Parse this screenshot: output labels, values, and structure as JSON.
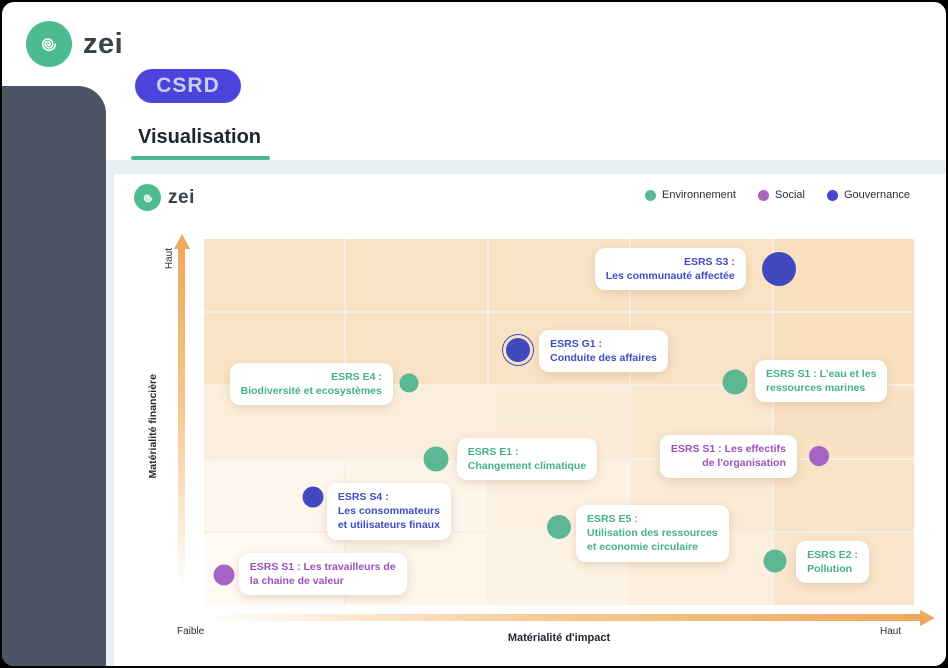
{
  "header": {
    "logo_text": "zei",
    "csrd_badge": "CSRD",
    "page_title": "Visualisation"
  },
  "panel": {
    "logo_text": "zei",
    "legend": [
      {
        "label": "Environnement",
        "color": "#5CB894"
      },
      {
        "label": "Social",
        "color": "#A763C4"
      },
      {
        "label": "Gouvernance",
        "color": "#4A43D0"
      }
    ]
  },
  "chart_data": {
    "type": "scatter",
    "title": "",
    "x_axis": {
      "label": "Matérialité d'impact",
      "low": "Faible",
      "high": "Haut"
    },
    "y_axis": {
      "label": "Matérialité financière",
      "high": "Haut"
    },
    "legend_position": "top-right",
    "grid": "5x5 shaded materiality zones, darker = higher materiality (top / right)",
    "colors": {
      "environnement": {
        "dot": "#5CB894",
        "text": "#47AE8E"
      },
      "social": {
        "dot": "#A763C4",
        "text": "#9C51BA"
      },
      "gouvernance": {
        "dot": "#4149C0",
        "text": "#3D4DC2"
      }
    },
    "grid_cells": [
      [
        "#FAE3C5",
        "#FAE3C5",
        "#FAE3C5",
        "#FAE3C5",
        "#F9E0C0"
      ],
      [
        "#FAE3C5",
        "#FAE3C5",
        "#FAE3C5",
        "#FAE3C5",
        "#F9E0C0"
      ],
      [
        "#FCEEDC",
        "#FCEEDC",
        "#FCEDDA",
        "#FBE8D0",
        "#F9E2C4"
      ],
      [
        "#FEF6EC",
        "#FEF5EA",
        "#FDF1E2",
        "#FBEAD5",
        "#F9E3C6"
      ],
      [
        "#FFFAF3",
        "#FEF6EB",
        "#FDF3E5",
        "#FCEEDC",
        "#FAE6CC"
      ]
    ],
    "points": [
      {
        "id": "esrs-s3",
        "label": "ESRS S3 :\nLes communauté affectée",
        "category": "gouvernance",
        "x_pct": 81.0,
        "y_pct": 8.2,
        "size": 34,
        "ring": false,
        "card": {
          "align": "right",
          "right_pct": 23.7,
          "top_pct": 2.5
        }
      },
      {
        "id": "esrs-g1",
        "label": "ESRS G1 :\nConduite des affaires",
        "category": "gouvernance",
        "x_pct": 44.2,
        "y_pct": 30.3,
        "size": 24,
        "ring": true,
        "card": {
          "align": "left",
          "left_pct": 47.2,
          "top_pct": 24.8
        }
      },
      {
        "id": "esrs-e4",
        "label": "ESRS E4 :\nBiodiversité et ecosystèmes",
        "category": "environnement",
        "x_pct": 28.9,
        "y_pct": 39.3,
        "size": 19,
        "ring": false,
        "card": {
          "align": "right",
          "right_pct": 73.4,
          "top_pct": 33.9
        }
      },
      {
        "id": "esrs-s1-eau",
        "label": "ESRS S1 : L'eau et les\nressources marines",
        "category": "environnement",
        "x_pct": 74.8,
        "y_pct": 39.1,
        "size": 25,
        "ring": false,
        "card": {
          "align": "left",
          "left_pct": 77.6,
          "top_pct": 33.1
        }
      },
      {
        "id": "esrs-e1",
        "label": "ESRS E1 :\nChangement climatique",
        "category": "environnement",
        "x_pct": 32.7,
        "y_pct": 60.2,
        "size": 25,
        "ring": false,
        "card": {
          "align": "left",
          "left_pct": 35.6,
          "top_pct": 54.4
        }
      },
      {
        "id": "esrs-s1-effectifs",
        "label": "ESRS S1 : Les effectifs\nde l'organisation",
        "category": "social",
        "x_pct": 86.6,
        "y_pct": 59.3,
        "size": 20,
        "ring": false,
        "card": {
          "align": "right",
          "right_pct": 16.5,
          "top_pct": 53.6
        }
      },
      {
        "id": "esrs-s4",
        "label": "ESRS S4 :\nLes consommateurs\net utilisateurs finaux",
        "category": "gouvernance",
        "x_pct": 15.4,
        "y_pct": 70.5,
        "size": 21,
        "ring": false,
        "card": {
          "align": "left",
          "left_pct": 17.3,
          "top_pct": 66.7
        }
      },
      {
        "id": "esrs-e5",
        "label": "ESRS E5 :\nUtilisation des ressources\net economie circulaire",
        "category": "environnement",
        "x_pct": 50.0,
        "y_pct": 78.7,
        "size": 24,
        "ring": false,
        "card": {
          "align": "left",
          "left_pct": 52.4,
          "top_pct": 72.7
        }
      },
      {
        "id": "esrs-s1-travailleurs",
        "label": "ESRS S1 : Les travailleurs de\nla chaine de valeur",
        "category": "social",
        "x_pct": 2.8,
        "y_pct": 91.7,
        "size": 21,
        "ring": false,
        "card": {
          "align": "left",
          "left_pct": 4.9,
          "top_pct": 85.8
        }
      },
      {
        "id": "esrs-e2",
        "label": "ESRS E2 :\nPollution",
        "category": "environnement",
        "x_pct": 80.4,
        "y_pct": 88.1,
        "size": 23,
        "ring": false,
        "card": {
          "align": "left",
          "left_pct": 83.4,
          "top_pct": 82.5
        }
      }
    ]
  }
}
